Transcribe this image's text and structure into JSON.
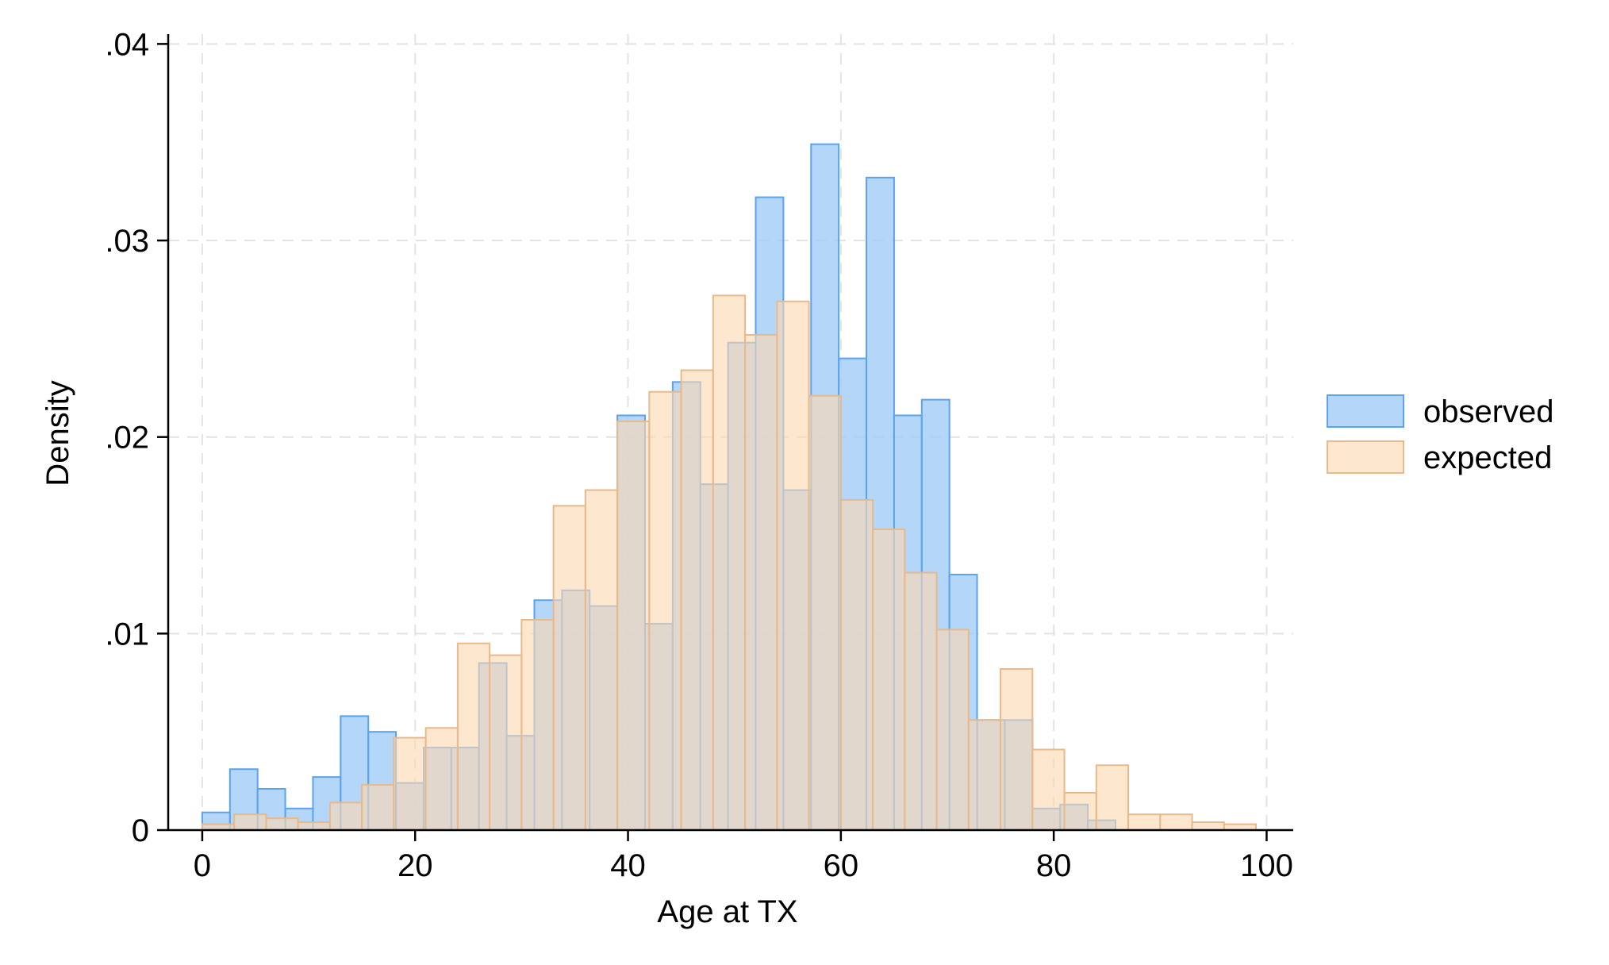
{
  "chart_data": {
    "type": "bar",
    "title": "",
    "xlabel": "Age at TX",
    "ylabel": "Density",
    "xlim": [
      -3.2,
      102.5
    ],
    "ylim": [
      0,
      0.0405
    ],
    "xticks": [
      0,
      20,
      40,
      60,
      80,
      100
    ],
    "xtick_labels": [
      "0",
      "20",
      "40",
      "60",
      "80",
      "100"
    ],
    "yticks": [
      0,
      0.01,
      0.02,
      0.03,
      0.04
    ],
    "ytick_labels": [
      "0",
      ".01",
      ".02",
      ".03",
      ".04"
    ],
    "grid": true,
    "legend_position": "right",
    "series": [
      {
        "name": "observed",
        "color": "#9ecbf7",
        "edge_color": "#5aa3ee",
        "bin_start": 0,
        "bin_width": 2.6,
        "values": [
          0.0009,
          0.0031,
          0.0021,
          0.0011,
          0.0027,
          0.0058,
          0.005,
          0.0024,
          0.0042,
          0.0042,
          0.0085,
          0.0048,
          0.0117,
          0.0122,
          0.0114,
          0.0211,
          0.0105,
          0.0228,
          0.0176,
          0.0248,
          0.0322,
          0.0173,
          0.0349,
          0.024,
          0.0332,
          0.0211,
          0.0219,
          0.013,
          0.0056,
          0.0056,
          0.0011,
          0.0013,
          0.0005
        ]
      },
      {
        "name": "expected",
        "color": "#fdd9b2",
        "edge_color": "#e8b98a",
        "bin_start": 0,
        "bin_width": 3.0,
        "values": [
          0.0003,
          0.0008,
          0.0006,
          0.0004,
          0.0014,
          0.0023,
          0.0047,
          0.0052,
          0.0095,
          0.0089,
          0.0107,
          0.0165,
          0.0173,
          0.0208,
          0.0223,
          0.0234,
          0.0272,
          0.0252,
          0.0269,
          0.0221,
          0.0168,
          0.0153,
          0.0131,
          0.0102,
          0.0056,
          0.0082,
          0.0041,
          0.0019,
          0.0033,
          0.0008,
          0.0008,
          0.0004,
          0.0003
        ]
      }
    ]
  }
}
